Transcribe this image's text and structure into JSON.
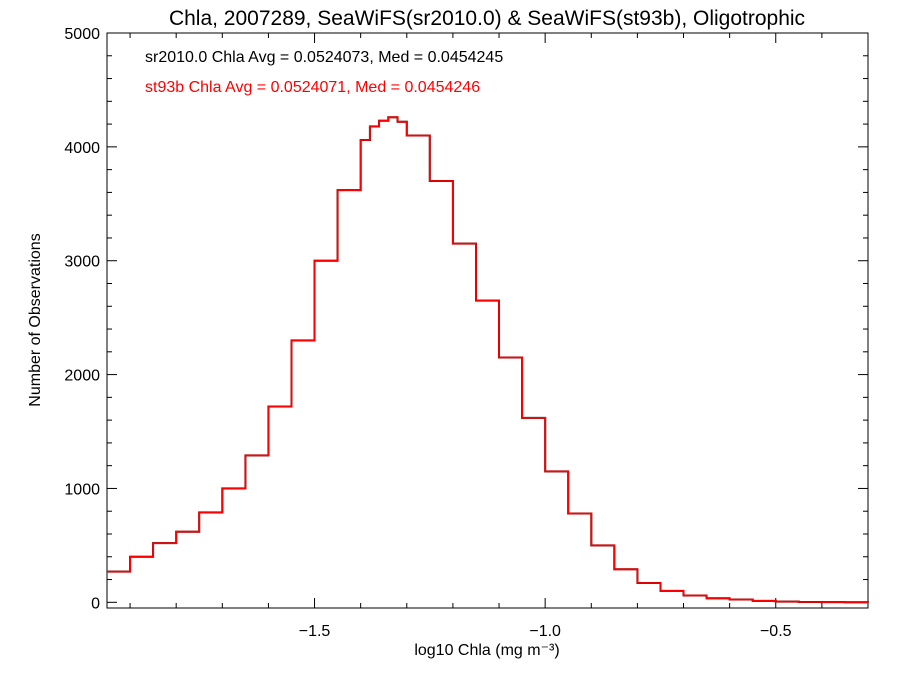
{
  "chart_data": {
    "type": "line",
    "step": true,
    "title": "Chla, 2007289, SeaWiFS(sr2010.0) & SeaWiFS(st93b), Oligotrophic",
    "xlabel": "log10 Chla (mg m⁻³)",
    "ylabel": "Number of Observations",
    "xlim": [
      -1.95,
      -0.3
    ],
    "ylim": [
      -50,
      5000
    ],
    "xticks": [
      -1.5,
      -1.0,
      -0.5
    ],
    "xtick_labels": [
      "−1.5",
      "−1.0",
      "−0.5"
    ],
    "yticks": [
      0,
      1000,
      2000,
      3000,
      4000,
      5000
    ],
    "ytick_labels": [
      "0",
      "1000",
      "2000",
      "3000",
      "4000",
      "5000"
    ],
    "annotations": [
      {
        "text": "sr2010.0 Chla Avg = 0.0524073, Med = 0.0454245",
        "color": "#000000"
      },
      {
        "text": "st93b Chla Avg = 0.0524071, Med = 0.0454246",
        "color": "#ff0000"
      }
    ],
    "x": [
      -1.95,
      -1.9,
      -1.85,
      -1.8,
      -1.75,
      -1.7,
      -1.65,
      -1.6,
      -1.55,
      -1.5,
      -1.45,
      -1.4,
      -1.38,
      -1.36,
      -1.34,
      -1.32,
      -1.3,
      -1.25,
      -1.2,
      -1.15,
      -1.1,
      -1.05,
      -1.0,
      -0.95,
      -0.9,
      -0.85,
      -0.8,
      -0.75,
      -0.7,
      -0.65,
      -0.6,
      -0.55,
      -0.5,
      -0.45,
      -0.4,
      -0.35,
      -0.3
    ],
    "series": [
      {
        "color": "#000000",
        "values": [
          270,
          400,
          520,
          620,
          790,
          1000,
          1290,
          1720,
          2300,
          3000,
          3620,
          4060,
          4180,
          4230,
          4260,
          4220,
          4100,
          3700,
          3150,
          2650,
          2150,
          1620,
          1150,
          780,
          500,
          290,
          170,
          100,
          60,
          35,
          25,
          12,
          6,
          3,
          2,
          1,
          0
        ]
      },
      {
        "color": "#ff0000",
        "values": [
          270,
          400,
          520,
          620,
          790,
          1000,
          1290,
          1720,
          2300,
          3000,
          3620,
          4060,
          4180,
          4230,
          4260,
          4220,
          4100,
          3700,
          3150,
          2650,
          2150,
          1620,
          1150,
          780,
          500,
          290,
          170,
          100,
          60,
          35,
          25,
          12,
          6,
          3,
          2,
          1,
          0
        ]
      }
    ]
  }
}
